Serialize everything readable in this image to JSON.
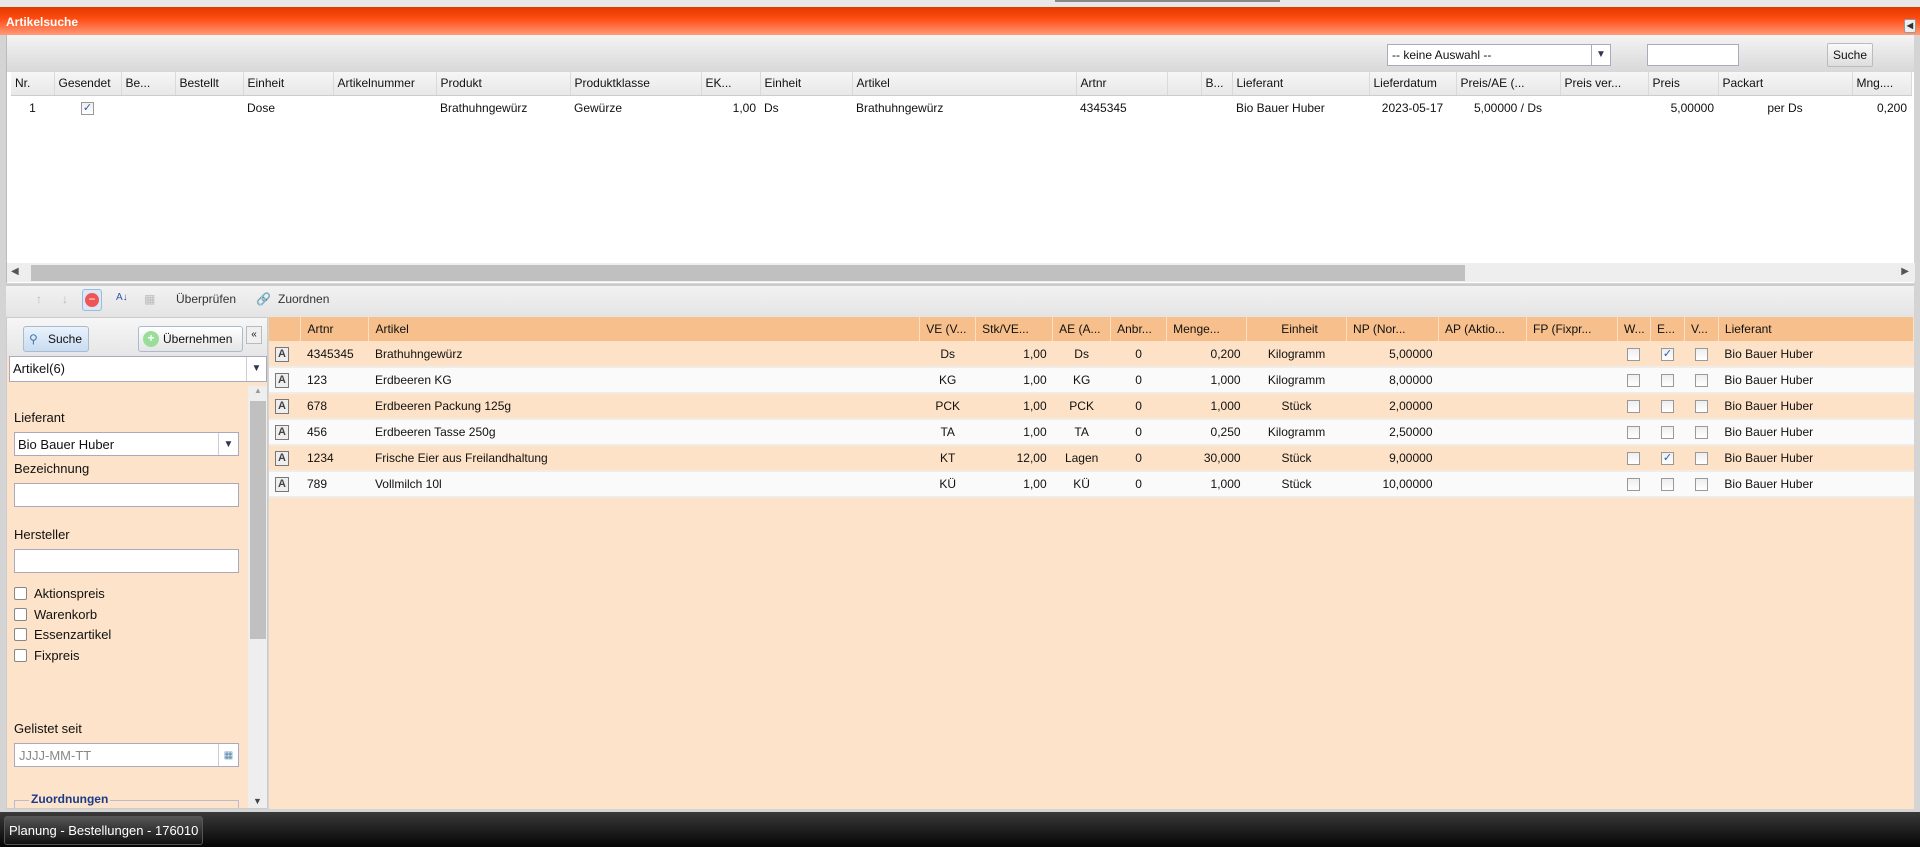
{
  "window": {
    "title": "Artikelsuche"
  },
  "upper": {
    "filter_select": "-- keine Auswahl --",
    "search_value": "",
    "search_button": "Suche",
    "columns": [
      "Nr.",
      "Gesendet",
      "Be...",
      "Bestellt",
      "Einheit",
      "Artikelnummer",
      "Produkt",
      "Produktklasse",
      "EK...",
      "Einheit",
      "Artikel",
      "Artnr",
      "",
      "B...",
      "Lieferant",
      "Lieferdatum",
      "Preis/AE (...",
      "Preis ver...",
      "Preis",
      "Packart",
      "Mng...."
    ],
    "rows": [
      {
        "nr": "1",
        "gesendet": true,
        "be": "",
        "bestellt": "",
        "einheit": "Dose",
        "artikelnummer": "",
        "produkt": "Brathuhngewürz",
        "produktklasse": "Gewürze",
        "ek": "1,00",
        "einheit2": "Ds",
        "artikel": "Brathuhngewürz",
        "artnr": "4345345",
        "blank": "",
        "b": "",
        "lieferant": "Bio Bauer Huber",
        "lieferdatum": "2023-05-17",
        "preis_ae": "5,00000 / Ds",
        "preis_ver": "",
        "preis": "5,00000",
        "packart": "per Ds",
        "mng": "0,200"
      }
    ]
  },
  "toolbar": {
    "check": "Überprüfen",
    "assign": "Zuordnen"
  },
  "left": {
    "search_button": "Suche",
    "apply_button": "Übernehmen",
    "type_select": "Artikel(6)",
    "supplier_label": "Lieferant",
    "supplier_value": "Bio Bauer Huber",
    "name_label": "Bezeichnung",
    "maker_label": "Hersteller",
    "checkboxes": [
      {
        "label": "Aktionspreis",
        "checked": false
      },
      {
        "label": "Warenkorb",
        "checked": false
      },
      {
        "label": "Essenzartikel",
        "checked": false
      },
      {
        "label": "Fixpreis",
        "checked": false
      }
    ],
    "listed_label": "Gelistet seit",
    "listed_placeholder": "JJJJ-MM-TT",
    "assignments_legend": "Zuordnungen"
  },
  "lower": {
    "columns": [
      "",
      "Artnr",
      "Artikel",
      "VE (V...",
      "Stk/VE...",
      "AE (A...",
      "Anbr...",
      "Menge...",
      "Einheit",
      "NP (Nor...",
      "AP (Aktio...",
      "FP (Fixpr...",
      "W...",
      "E...",
      "V...",
      "Lieferant"
    ],
    "rows": [
      {
        "artnr": "4345345",
        "artikel": "Brathuhngewürz",
        "ve": "Ds",
        "stk": "1,00",
        "ae": "Ds",
        "anbr": "0",
        "menge": "0,200",
        "einheit": "Kilogramm",
        "np": "5,00000",
        "ap": "",
        "fp": "",
        "w": false,
        "e": true,
        "v": false,
        "lieferant": "Bio Bauer Huber"
      },
      {
        "artnr": "123",
        "artikel": "Erdbeeren KG",
        "ve": "KG",
        "stk": "1,00",
        "ae": "KG",
        "anbr": "0",
        "menge": "1,000",
        "einheit": "Kilogramm",
        "np": "8,00000",
        "ap": "",
        "fp": "",
        "w": false,
        "e": false,
        "v": false,
        "lieferant": "Bio Bauer Huber"
      },
      {
        "artnr": "678",
        "artikel": "Erdbeeren Packung 125g",
        "ve": "PCK",
        "stk": "1,00",
        "ae": "PCK",
        "anbr": "0",
        "menge": "1,000",
        "einheit": "Stück",
        "np": "2,00000",
        "ap": "",
        "fp": "",
        "w": false,
        "e": false,
        "v": false,
        "lieferant": "Bio Bauer Huber"
      },
      {
        "artnr": "456",
        "artikel": "Erdbeeren Tasse 250g",
        "ve": "TA",
        "stk": "1,00",
        "ae": "TA",
        "anbr": "0",
        "menge": "0,250",
        "einheit": "Kilogramm",
        "np": "2,50000",
        "ap": "",
        "fp": "",
        "w": false,
        "e": false,
        "v": false,
        "lieferant": "Bio Bauer Huber"
      },
      {
        "artnr": "1234",
        "artikel": "Frische Eier aus Freilandhaltung",
        "ve": "KT",
        "stk": "12,00",
        "ae": "Lagen",
        "anbr": "0",
        "menge": "30,000",
        "einheit": "Stück",
        "np": "9,00000",
        "ap": "",
        "fp": "",
        "w": false,
        "e": true,
        "v": false,
        "lieferant": "Bio Bauer Huber"
      },
      {
        "artnr": "789",
        "artikel": "Vollmilch 10l",
        "ve": "KÜ",
        "stk": "1,00",
        "ae": "KÜ",
        "anbr": "0",
        "menge": "1,000",
        "einheit": "Stück",
        "np": "10,00000",
        "ap": "",
        "fp": "",
        "w": false,
        "e": false,
        "v": false,
        "lieferant": "Bio Bauer Huber"
      }
    ]
  },
  "taskbar": {
    "task": "Planung - Bestellungen - 176010"
  },
  "colors": {
    "title": "#ff4a10",
    "grid_header": "#f7bf8b",
    "row_odd": "#fde2c8",
    "panel": "#fce3c9"
  }
}
